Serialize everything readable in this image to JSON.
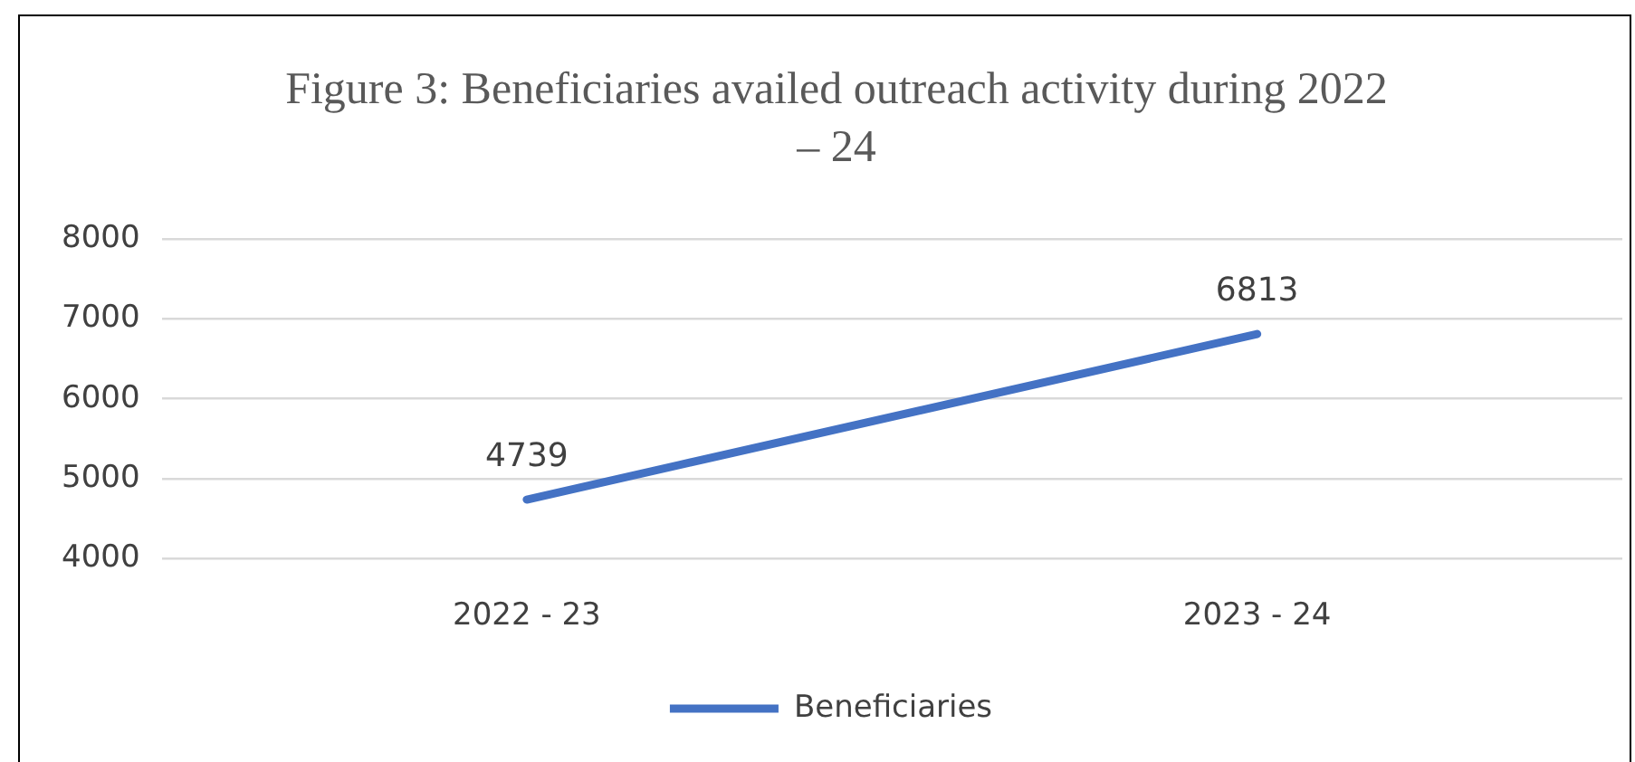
{
  "chart_data": {
    "type": "line",
    "title": "Figure 3: Beneficiaries availed outreach activity during 2022 – 24",
    "categories": [
      "2022 - 23",
      "2023 - 24"
    ],
    "series": [
      {
        "name": "Beneficiaries",
        "color": "#4472c4",
        "values": [
          4739,
          6813
        ]
      }
    ],
    "ylim": [
      4000,
      8000
    ],
    "yticks": [
      4000,
      5000,
      6000,
      7000,
      8000
    ],
    "grid": "y",
    "legend": "bottom",
    "data_labels": true,
    "marker": "none",
    "line_style": "solid"
  }
}
